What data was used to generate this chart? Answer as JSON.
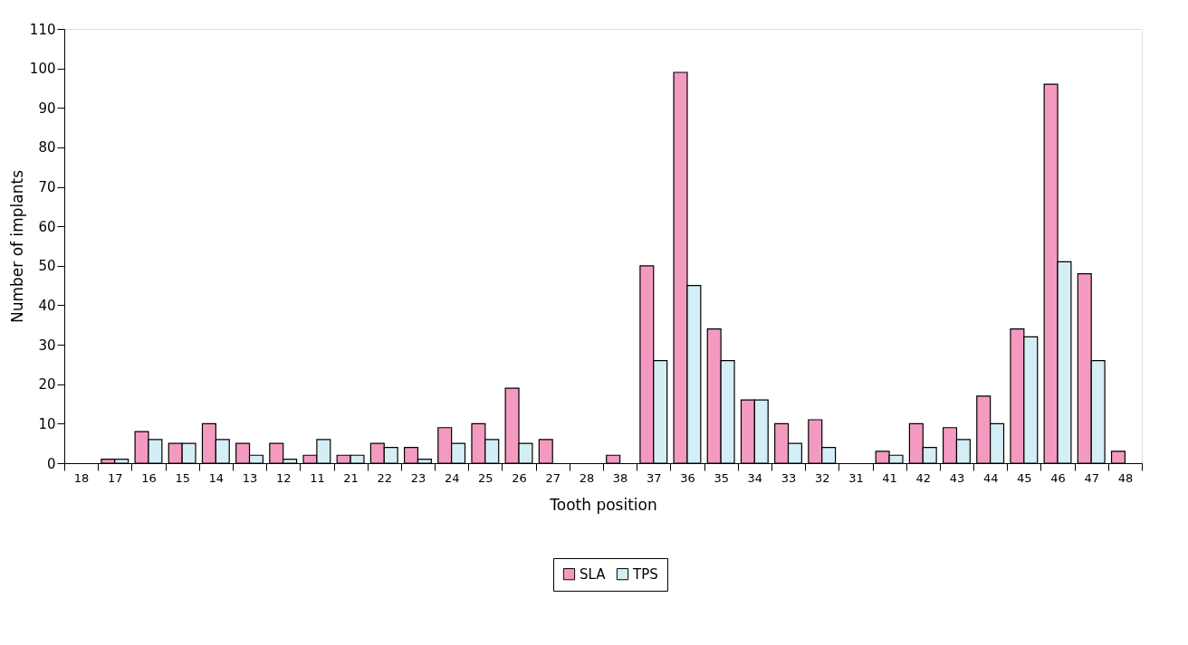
{
  "chart_data": {
    "type": "bar",
    "xlabel": "Tooth position",
    "ylabel": "Number of implants",
    "categories": [
      "18",
      "17",
      "16",
      "15",
      "14",
      "13",
      "12",
      "11",
      "21",
      "22",
      "23",
      "24",
      "25",
      "26",
      "27",
      "28",
      "38",
      "37",
      "36",
      "35",
      "34",
      "33",
      "32",
      "31",
      "41",
      "42",
      "43",
      "44",
      "45",
      "46",
      "47",
      "48"
    ],
    "series": [
      {
        "name": "SLA",
        "color": "#f49ac1",
        "values": [
          0,
          1,
          8,
          5,
          10,
          5,
          5,
          2,
          2,
          5,
          4,
          9,
          10,
          19,
          6,
          0,
          2,
          50,
          99,
          34,
          16,
          10,
          11,
          0,
          3,
          10,
          9,
          17,
          34,
          96,
          48,
          3
        ]
      },
      {
        "name": "TPS",
        "color": "#d4eef5",
        "values": [
          0,
          1,
          6,
          5,
          6,
          2,
          1,
          6,
          2,
          4,
          1,
          5,
          6,
          5,
          0,
          0,
          0,
          26,
          45,
          26,
          16,
          5,
          4,
          0,
          2,
          4,
          6,
          10,
          32,
          51,
          26,
          0
        ]
      }
    ],
    "ylim": [
      0,
      110
    ],
    "yticks": [
      0,
      10,
      20,
      30,
      40,
      50,
      60,
      70,
      80,
      90,
      100,
      110
    ],
    "grid": false,
    "legend": "bottom"
  }
}
